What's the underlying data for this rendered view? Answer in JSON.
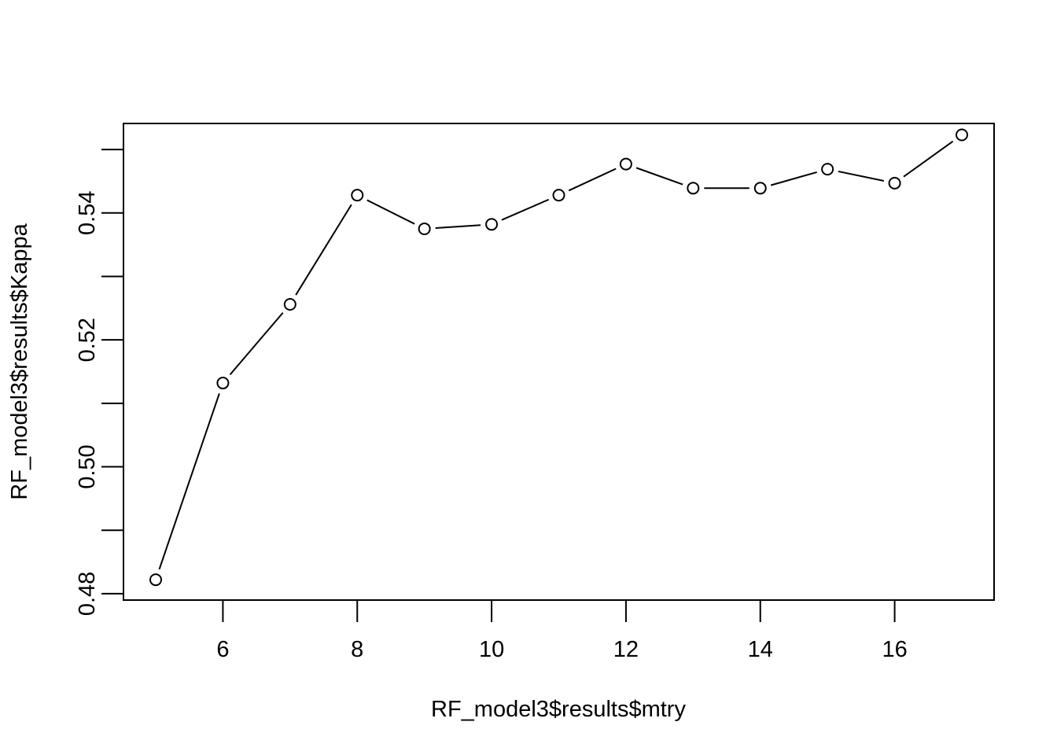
{
  "chart_data": {
    "type": "line",
    "title": "",
    "xlabel": "RF_model3$results$mtry",
    "ylabel": "RF_model3$results$Kappa",
    "xlim": [
      4.52,
      17.48
    ],
    "ylim": [
      0.479,
      0.5541
    ],
    "x_ticks": [
      6,
      8,
      10,
      12,
      14,
      16
    ],
    "x_tick_labels": [
      "6",
      "8",
      "10",
      "12",
      "14",
      "16"
    ],
    "y_ticks": [
      0.48,
      0.49,
      0.5,
      0.51,
      0.52,
      0.53,
      0.54,
      0.55
    ],
    "y_tick_labels": [
      "0.48",
      "",
      "0.50",
      "",
      "0.52",
      "",
      "0.54",
      ""
    ],
    "grid": false,
    "legend": "none",
    "marker": "open-circle",
    "colors": {
      "line": "#000000",
      "marker_fill": "#ffffff",
      "axis": "#000000"
    },
    "series": [
      {
        "x": [
          5,
          6,
          7,
          8,
          9,
          10,
          11,
          12,
          13,
          14,
          15,
          16,
          17
        ],
        "values": [
          0.4822,
          0.5132,
          0.5256,
          0.5428,
          0.5375,
          0.5382,
          0.5428,
          0.5477,
          0.5439,
          0.5439,
          0.5469,
          0.5447,
          0.5523
        ]
      }
    ]
  }
}
